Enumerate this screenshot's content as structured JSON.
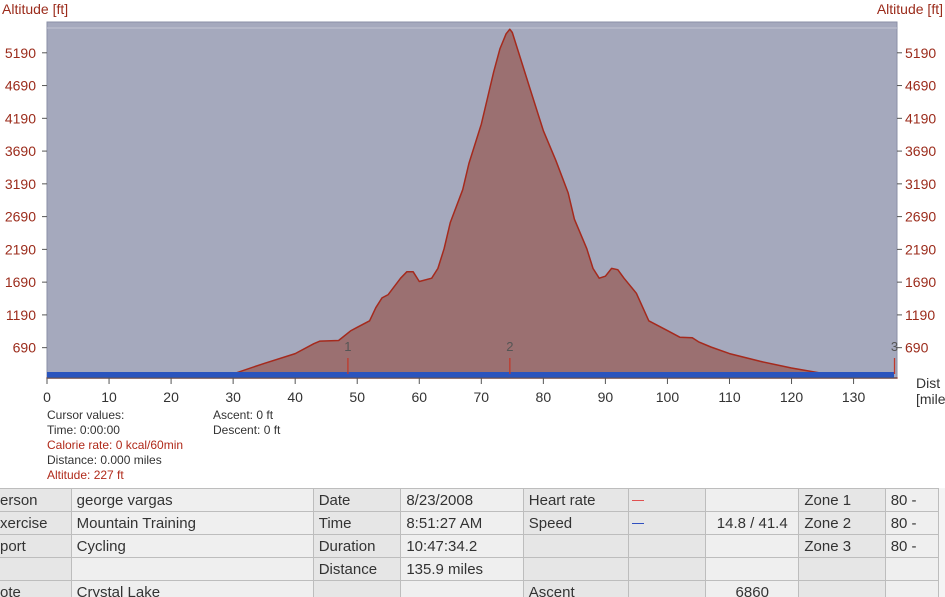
{
  "colors": {
    "plot_bg": "#a5a9bd",
    "plot_border": "#8a8fa6",
    "area_fill": "#9b7071",
    "area_line": "#a52a1d",
    "distance_bar": "#2a54bd",
    "axis_text_red": "#9b2b1b",
    "heart_rate_line": "#e05050",
    "speed_line": "#3050c0"
  },
  "chart_data": {
    "type": "area",
    "ylabel_left": "Altitude [ft]",
    "ylabel_right": "Altitude [ft]",
    "xlabel": "Dist",
    "xunit": "[mile",
    "xlim": [
      0,
      137
    ],
    "ylim": [
      227,
      5660
    ],
    "xticks": [
      0,
      10,
      20,
      30,
      40,
      50,
      60,
      70,
      80,
      90,
      100,
      110,
      120,
      130
    ],
    "yticks": [
      690,
      1190,
      1690,
      2190,
      2690,
      3190,
      3690,
      4190,
      4690,
      5190
    ],
    "laps": [
      {
        "label": "1",
        "x": 48.5
      },
      {
        "label": "2",
        "x": 74.6
      },
      {
        "label": "3",
        "x": 136.6
      }
    ],
    "series": [
      {
        "x": [
          0,
          10,
          20,
          27,
          30,
          35,
          40,
          43,
          44,
          47,
          49,
          50,
          52,
          53,
          54,
          55,
          57,
          58,
          59,
          60,
          62,
          63,
          64,
          65,
          67,
          68,
          70,
          71,
          72,
          73,
          74,
          74.6,
          75,
          76,
          78,
          80,
          82,
          84,
          85,
          87,
          88,
          89,
          90,
          91,
          92,
          93,
          95,
          97,
          100,
          102,
          104,
          105,
          107,
          110,
          115,
          120,
          126,
          130,
          137
        ],
        "y": [
          227,
          227,
          227,
          250,
          290,
          450,
          600,
          750,
          790,
          800,
          950,
          1000,
          1100,
          1300,
          1450,
          1500,
          1750,
          1850,
          1850,
          1700,
          1750,
          1900,
          2200,
          2600,
          3100,
          3500,
          4100,
          4500,
          4900,
          5250,
          5480,
          5550,
          5500,
          5200,
          4600,
          4000,
          3550,
          3050,
          2650,
          2200,
          1900,
          1750,
          1780,
          1900,
          1880,
          1750,
          1520,
          1100,
          950,
          850,
          840,
          780,
          700,
          600,
          480,
          380,
          280,
          227,
          227
        ]
      }
    ]
  },
  "cursor": {
    "title": "Cursor values:",
    "time": "Time: 0:00:00",
    "calorie_rate": "Calorie rate: 0 kcal/60min",
    "distance": "Distance: 0.000 miles",
    "altitude": "Altitude: 227 ft",
    "ascent": "Ascent: 0 ft",
    "descent": "Descent: 0 ft"
  },
  "summary": {
    "rows": [
      [
        "erson",
        "george vargas",
        "Date",
        "8/23/2008",
        "Heart rate",
        "",
        "",
        "Zone 1",
        "80 -"
      ],
      [
        "xercise",
        "Mountain Training",
        "Time",
        "8:51:27 AM",
        "Speed",
        "",
        "14.8 / 41.4",
        "Zone 2",
        "80 -"
      ],
      [
        "port",
        "Cycling",
        "Duration",
        "10:47:34.2",
        "",
        "",
        "",
        "Zone 3",
        "80 -"
      ],
      [
        "",
        "",
        "Distance",
        "135.9 miles",
        "",
        "",
        "",
        "",
        ""
      ],
      [
        "ote",
        "Crystal Lake",
        "",
        "",
        "Ascent",
        "",
        "6860",
        "",
        ""
      ]
    ]
  }
}
